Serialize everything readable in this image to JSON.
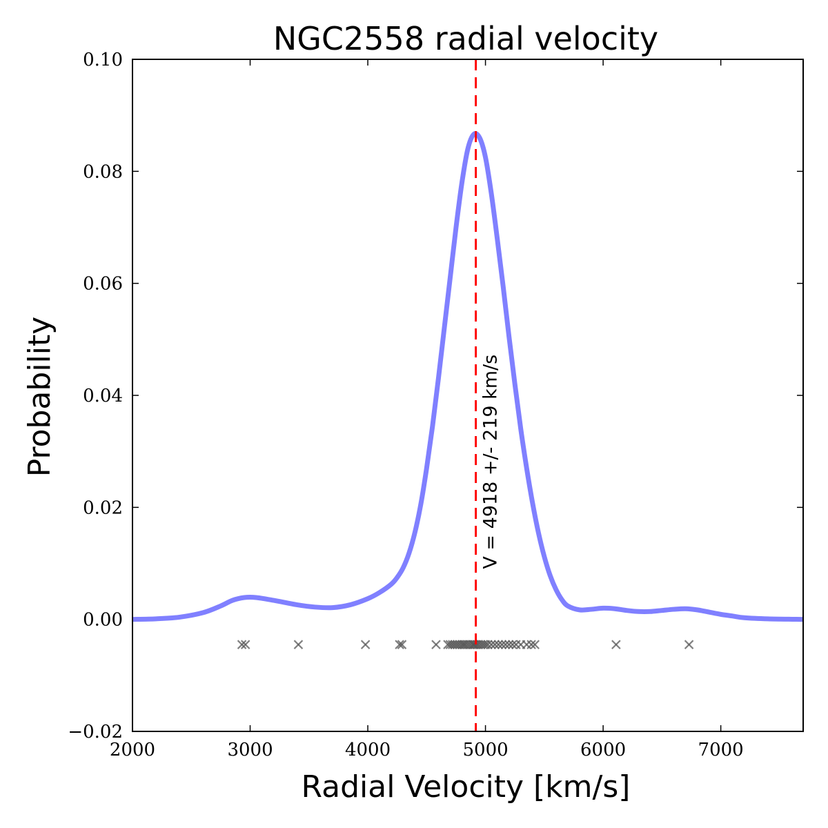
{
  "chart_data": {
    "type": "line",
    "title": "NGC2558 radial velocity",
    "xlabel": "Radial Velocity [km/s]",
    "ylabel": "Probability",
    "xlim": [
      2000,
      7700
    ],
    "ylim": [
      -0.02,
      0.1
    ],
    "xticks": [
      2000,
      3000,
      4000,
      5000,
      6000,
      7000
    ],
    "xtick_labels": [
      "2000",
      "3000",
      "4000",
      "5000",
      "6000",
      "7000"
    ],
    "yticks": [
      -0.02,
      0.0,
      0.02,
      0.04,
      0.06,
      0.08,
      0.1
    ],
    "ytick_labels": [
      "−0.02",
      "0.00",
      "0.02",
      "0.04",
      "0.06",
      "0.08",
      "0.10"
    ],
    "grid": false,
    "series": [
      {
        "color": "#8080ff",
        "x": [
          2000,
          2200,
          2400,
          2600,
          2750,
          2850,
          2950,
          3050,
          3200,
          3400,
          3550,
          3700,
          3850,
          4000,
          4100,
          4200,
          4250,
          4300,
          4350,
          4400,
          4450,
          4500,
          4550,
          4600,
          4650,
          4700,
          4750,
          4800,
          4850,
          4900,
          4950,
          5000,
          5050,
          5100,
          5150,
          5200,
          5250,
          5300,
          5350,
          5400,
          5450,
          5500,
          5550,
          5600,
          5650,
          5700,
          5800,
          5900,
          6000,
          6100,
          6200,
          6300,
          6400,
          6500,
          6600,
          6700,
          6800,
          6900,
          7000,
          7100,
          7200,
          7400,
          7700
        ],
        "y": [
          0.0,
          0.0001,
          0.0004,
          0.0012,
          0.0024,
          0.0034,
          0.0039,
          0.0039,
          0.0034,
          0.0026,
          0.0022,
          0.0021,
          0.0026,
          0.0037,
          0.0048,
          0.0063,
          0.0075,
          0.0092,
          0.0118,
          0.0155,
          0.0205,
          0.027,
          0.0345,
          0.043,
          0.052,
          0.061,
          0.07,
          0.078,
          0.084,
          0.0866,
          0.086,
          0.0825,
          0.076,
          0.068,
          0.0595,
          0.0505,
          0.042,
          0.034,
          0.027,
          0.0208,
          0.0155,
          0.0112,
          0.0078,
          0.0053,
          0.0035,
          0.0024,
          0.0017,
          0.0018,
          0.002,
          0.0019,
          0.0016,
          0.0014,
          0.0014,
          0.0016,
          0.0018,
          0.0019,
          0.0017,
          0.0013,
          0.0009,
          0.0006,
          0.0003,
          0.0001,
          0.0
        ]
      }
    ],
    "markers": {
      "symbol": "x",
      "color": "#555555",
      "y": -0.0045,
      "x": [
        2930,
        2960,
        3410,
        3980,
        4270,
        4290,
        4580,
        4680,
        4700,
        4720,
        4740,
        4760,
        4780,
        4800,
        4815,
        4830,
        4850,
        4870,
        4890,
        4900,
        4910,
        4925,
        4940,
        4960,
        4980,
        5000,
        5020,
        5050,
        5080,
        5110,
        5140,
        5170,
        5200,
        5230,
        5260,
        5300,
        5350,
        5390,
        5420,
        6110,
        6730
      ]
    },
    "vline": {
      "x": 4918,
      "color": "#ff0000",
      "style": "dashed"
    },
    "annotation": {
      "text": "V = 4918 +/- 219 km/s",
      "x": 4918,
      "y": 0.009,
      "rotation": -90
    }
  }
}
